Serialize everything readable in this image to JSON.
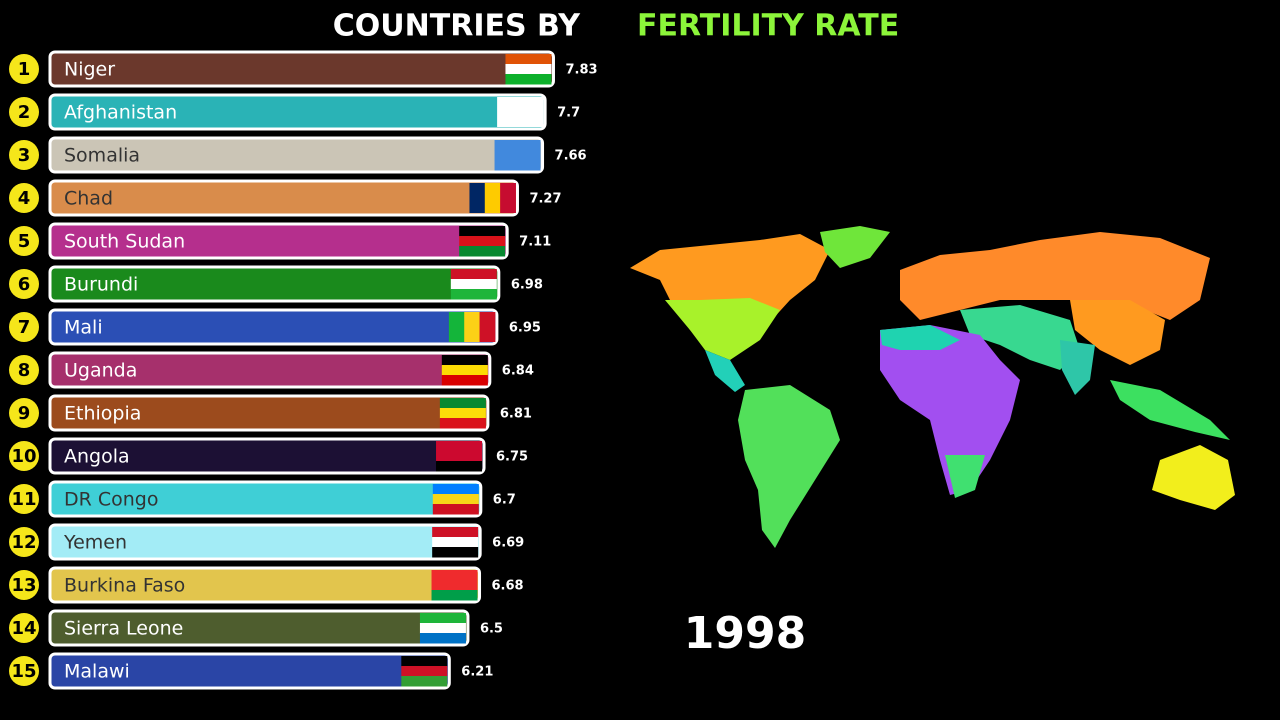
{
  "chart_data": {
    "type": "bar",
    "orientation": "horizontal",
    "title": "COUNTRIES BY",
    "title_highlight": "FERTILITY RATE",
    "year": 1998,
    "ranks": [
      1,
      2,
      3,
      4,
      5,
      6,
      7,
      8,
      9,
      10,
      11,
      12,
      13,
      14,
      15
    ],
    "categories": [
      "Niger",
      "Afghanistan",
      "Somalia",
      "Chad",
      "South Sudan",
      "Burundi",
      "Mali",
      "Uganda",
      "Ethiopia",
      "Angola",
      "DR Congo",
      "Yemen",
      "Burkina Faso",
      "Sierra Leone",
      "Malawi"
    ],
    "values": [
      7.83,
      7.7,
      7.66,
      7.27,
      7.11,
      6.98,
      6.95,
      6.84,
      6.81,
      6.75,
      6.7,
      6.69,
      6.68,
      6.5,
      6.21
    ],
    "colors": [
      "#6b382c",
      "#2ab3b6",
      "#cbc5b6",
      "#d98c4b",
      "#b52f8d",
      "#1a8a1c",
      "#2b4fb5",
      "#a6306c",
      "#9c4b1d",
      "#1c1034",
      "#3fcfd6",
      "#a3ecf6",
      "#e2c54d",
      "#4e5d2e",
      "#2a45a6"
    ]
  }
}
